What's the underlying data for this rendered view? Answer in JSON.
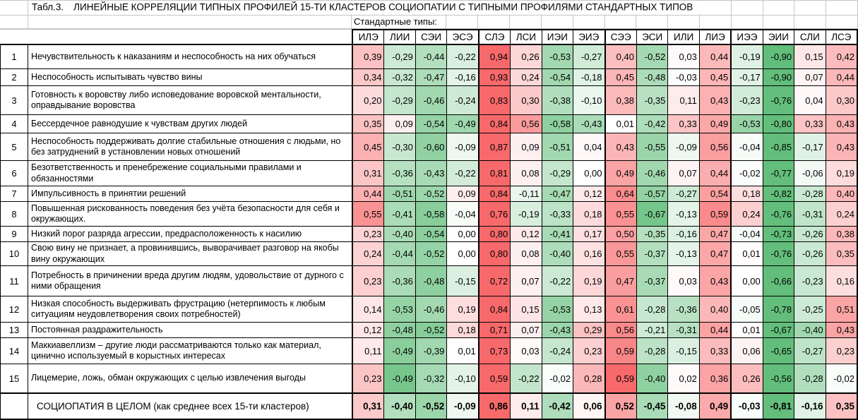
{
  "chart_data": {
    "type": "heatmap",
    "title_prefix": "Табл.3.",
    "title": "ЛИНЕЙНЫЕ КОРРЕЛЯЦИИ ТИПНЫХ ПРОФИЛЕЙ 15-ТИ КЛАСТЕРОВ СОЦИОПАТИИ С ТИПНЫМИ ПРОФИЛЯМИ СТАНДАРТНЫХ ТИПОВ",
    "columns_group_label": "Стандартные типы:",
    "columns": [
      "ИЛЭ",
      "ЛИИ",
      "СЭИ",
      "ЭСЭ",
      "СЛЭ",
      "ЛСИ",
      "ИЭИ",
      "ЭИЭ",
      "СЭЭ",
      "ЭСИ",
      "ИЛИ",
      "ЛИЭ",
      "ИЭЭ",
      "ЭИИ",
      "СЛИ",
      "ЛСЭ"
    ],
    "column_group_size": 4,
    "value_format": "comma-decimal, 2 digits",
    "colorscale": {
      "positive_max_color": "#F8696B",
      "midpoint_color": "#FFFFFF",
      "negative_min_color": "#63BE7B",
      "midpoint": 0,
      "scaling": "per-row"
    },
    "rows": [
      {
        "num": "1",
        "label": "Нечувствительность к наказаниям и неспособность на них обучаться",
        "values": [
          0.39,
          -0.29,
          -0.44,
          -0.22,
          0.94,
          0.26,
          -0.53,
          -0.27,
          0.4,
          -0.52,
          0.03,
          0.44,
          -0.19,
          -0.9,
          0.15,
          0.42
        ]
      },
      {
        "num": "2",
        "label": "Неспособность испытывать чувство вины",
        "values": [
          0.34,
          -0.32,
          -0.47,
          -0.16,
          0.93,
          0.24,
          -0.54,
          -0.18,
          0.45,
          -0.48,
          -0.03,
          0.45,
          -0.17,
          -0.9,
          0.07,
          0.44
        ]
      },
      {
        "num": "3",
        "label": "Готовность к воровству либо исповедование воровской ментальности, оправдывание воровства",
        "values": [
          0.2,
          -0.29,
          -0.46,
          -0.24,
          0.83,
          0.3,
          -0.38,
          -0.1,
          0.38,
          -0.35,
          0.11,
          0.43,
          -0.23,
          -0.76,
          0.04,
          0.3
        ]
      },
      {
        "num": "4",
        "label": "Бессердечное равнодушие к чувствам других людей",
        "values": [
          0.35,
          0.09,
          -0.54,
          -0.49,
          0.84,
          0.56,
          -0.58,
          -0.43,
          0.01,
          -0.42,
          0.33,
          0.49,
          -0.53,
          -0.8,
          0.33,
          0.43
        ]
      },
      {
        "num": "5",
        "label": "Неспособность поддерживать долгие стабильные отношения с людьми, но без затруднений в установлении новых отношений",
        "values": [
          0.45,
          -0.3,
          -0.6,
          -0.09,
          0.87,
          0.09,
          -0.51,
          0.04,
          0.43,
          -0.55,
          -0.09,
          0.56,
          -0.04,
          -0.85,
          -0.17,
          0.43
        ]
      },
      {
        "num": "6",
        "label": "Безответственность и пренебрежение социальными правилами и обязанностями",
        "values": [
          0.31,
          -0.36,
          -0.43,
          -0.22,
          0.81,
          0.08,
          -0.29,
          0.0,
          0.49,
          -0.46,
          0.07,
          0.44,
          -0.02,
          -0.77,
          -0.06,
          0.19
        ]
      },
      {
        "num": "7",
        "label": "Импульсивность в принятии решений",
        "values": [
          0.44,
          -0.51,
          -0.52,
          0.09,
          0.84,
          -0.11,
          -0.47,
          0.12,
          0.64,
          -0.57,
          -0.27,
          0.54,
          0.18,
          -0.82,
          -0.28,
          0.4
        ]
      },
      {
        "num": "8",
        "label": "Повышенная рискованность поведения без учёта безопасности для себя и окружающих.",
        "values": [
          0.55,
          -0.41,
          -0.58,
          -0.04,
          0.76,
          -0.19,
          -0.33,
          0.18,
          0.55,
          -0.67,
          -0.13,
          0.59,
          0.24,
          -0.76,
          -0.31,
          0.24
        ]
      },
      {
        "num": "9",
        "label": "Низкий порог разряда агрессии, предрасположенность к насилию",
        "values": [
          0.23,
          -0.4,
          -0.54,
          0.0,
          0.8,
          0.12,
          -0.41,
          0.17,
          0.5,
          -0.35,
          -0.16,
          0.47,
          -0.04,
          -0.73,
          -0.26,
          0.38
        ]
      },
      {
        "num": "10",
        "label": "Свою вину не признает, а провинившись, выворачивает разговор на якобы вину окружающих",
        "values": [
          0.24,
          -0.44,
          -0.52,
          0.0,
          0.8,
          0.08,
          -0.4,
          0.16,
          0.55,
          -0.37,
          -0.13,
          0.47,
          0.01,
          -0.76,
          -0.26,
          0.35
        ]
      },
      {
        "num": "11",
        "label": "Потребность в причинении вреда другим людям, удовольствие от дурного с ними обращения",
        "values": [
          0.23,
          -0.36,
          -0.48,
          -0.15,
          0.72,
          0.07,
          -0.22,
          0.19,
          0.47,
          -0.37,
          0.03,
          0.43,
          0.0,
          -0.66,
          -0.23,
          0.16
        ]
      },
      {
        "num": "12",
        "label": "Низкая способность выдерживать фрустрацию (нетерпимость к любым ситуациям неудовлетворения своих потребностей)",
        "values": [
          0.14,
          -0.53,
          -0.46,
          0.19,
          0.84,
          0.15,
          -0.53,
          0.13,
          0.61,
          -0.28,
          -0.36,
          0.4,
          -0.05,
          -0.78,
          -0.25,
          0.51
        ]
      },
      {
        "num": "13",
        "label": "Постоянная раздражительность",
        "values": [
          0.12,
          -0.48,
          -0.52,
          0.18,
          0.71,
          0.07,
          -0.43,
          0.29,
          0.56,
          -0.21,
          -0.31,
          0.44,
          0.01,
          -0.67,
          -0.4,
          0.43
        ]
      },
      {
        "num": "14",
        "label": "Маккиавеллизм – другие люди рассматриваются только как материал, цинично используемый в корыстных интересах",
        "values": [
          0.11,
          -0.49,
          -0.39,
          0.01,
          0.73,
          0.03,
          -0.24,
          0.23,
          0.59,
          -0.28,
          -0.15,
          0.33,
          0.06,
          -0.65,
          -0.27,
          0.23
        ]
      },
      {
        "num": "15",
        "label": "Лицемерие, ложь, обман окружающих с целью извлечения выгоды",
        "values": [
          0.23,
          -0.49,
          -0.32,
          -0.1,
          0.59,
          -0.22,
          -0.02,
          0.28,
          0.59,
          -0.4,
          0.02,
          0.36,
          0.26,
          -0.56,
          -0.28,
          -0.02
        ]
      }
    ],
    "summary_row": {
      "num": "",
      "label": "СОЦИОПАТИЯ В ЦЕЛОМ (как среднее всех 15-ти кластеров)",
      "values": [
        0.31,
        -0.4,
        -0.52,
        -0.09,
        0.86,
        0.11,
        -0.42,
        0.06,
        0.52,
        -0.45,
        -0.08,
        0.49,
        -0.03,
        -0.81,
        -0.16,
        0.35
      ]
    }
  }
}
